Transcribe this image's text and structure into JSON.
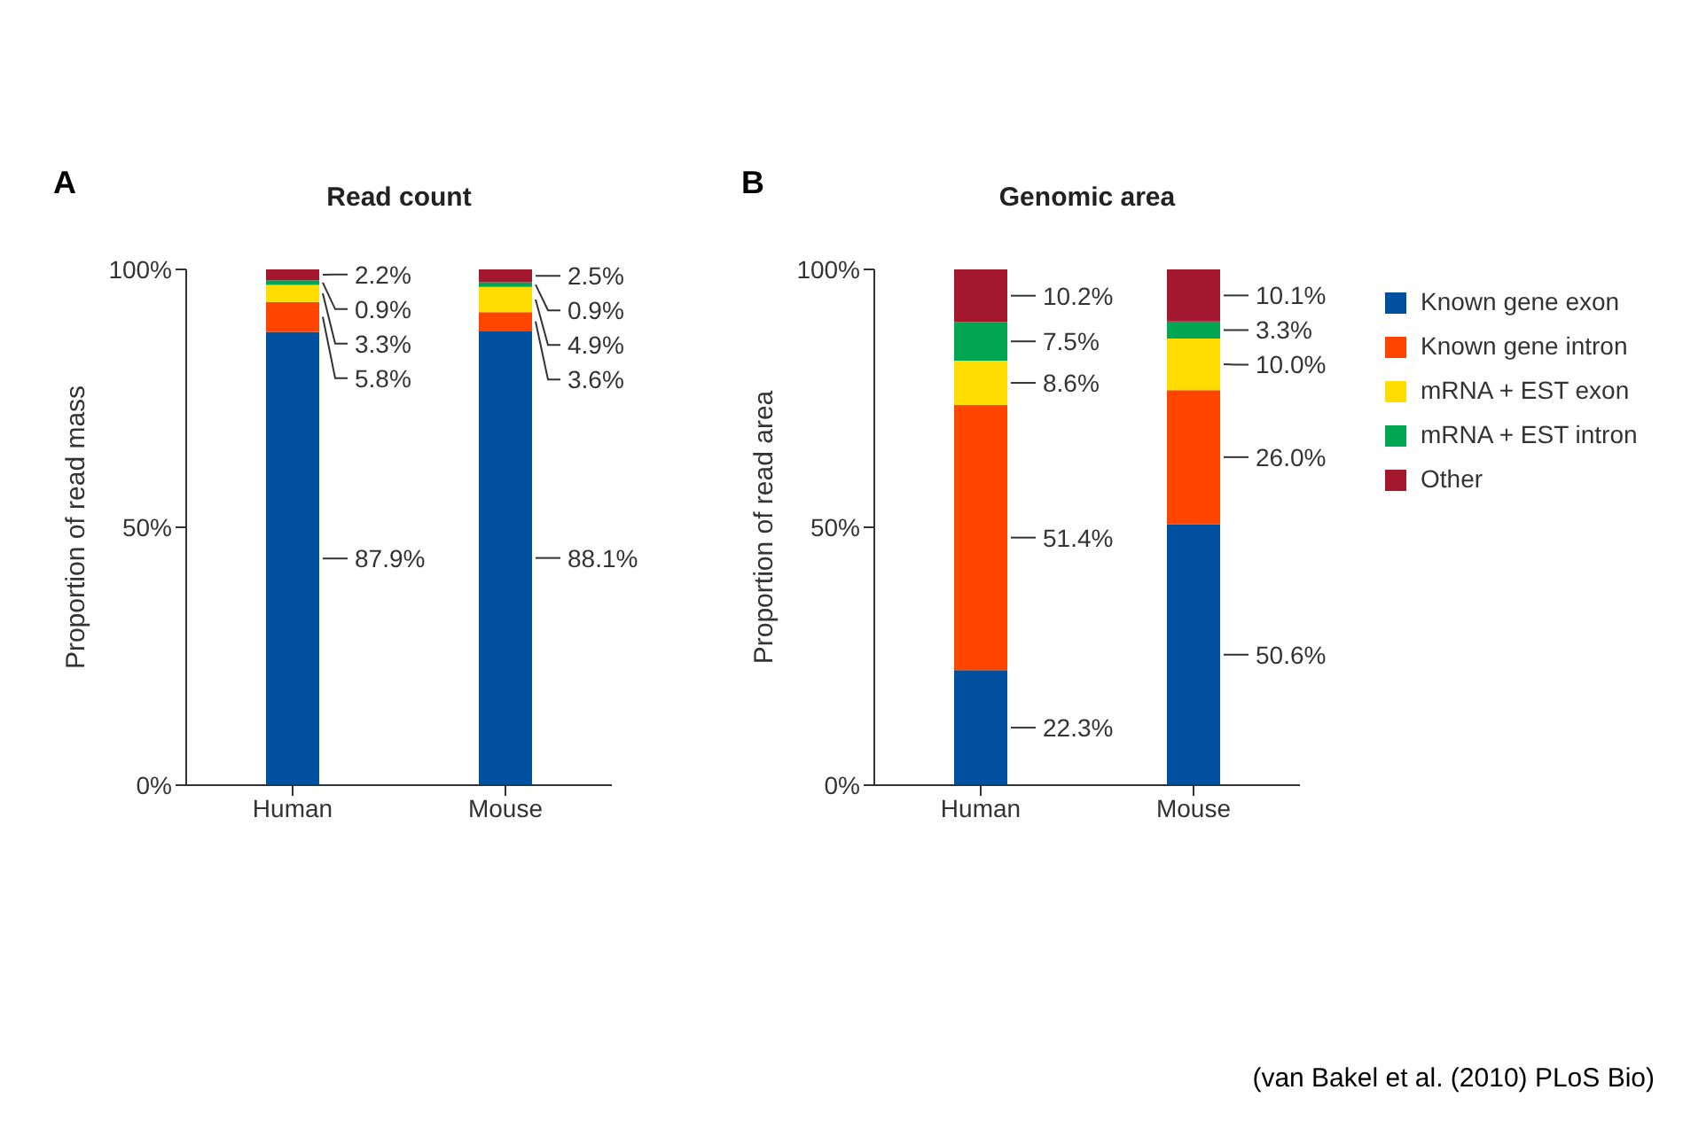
{
  "chart_data": [
    {
      "type": "bar",
      "stacked": true,
      "title": "Read count",
      "ylabel": "Proportion of read mass",
      "categories": [
        "Human",
        "Mouse"
      ],
      "ylim": [
        0,
        100
      ],
      "yticks": [
        {
          "value": 0,
          "label": "0%"
        },
        {
          "value": 50,
          "label": "50%"
        },
        {
          "value": 100,
          "label": "100%"
        }
      ],
      "grid": false,
      "legend": false,
      "annotations": [
        "A"
      ],
      "series": [
        {
          "color": "#0050a0",
          "values": [
            87.9,
            88.1
          ],
          "value_labels": [
            "87.9%",
            "88.1%"
          ]
        },
        {
          "color": "#ff4500",
          "values": [
            5.8,
            3.6
          ],
          "value_labels": [
            "5.8%",
            "3.6%"
          ]
        },
        {
          "color": "#ffdd00",
          "values": [
            3.3,
            4.9
          ],
          "value_labels": [
            "3.3%",
            "4.9%"
          ]
        },
        {
          "color": "#00a651",
          "values": [
            0.9,
            0.9
          ],
          "value_labels": [
            "0.9%",
            "0.9%"
          ]
        },
        {
          "color": "#a3172f",
          "values": [
            2.2,
            2.5
          ],
          "value_labels": [
            "2.2%",
            "2.5%"
          ]
        }
      ]
    },
    {
      "type": "bar",
      "stacked": true,
      "title": "Genomic area",
      "ylabel": "Proportion of read area",
      "categories": [
        "Human",
        "Mouse"
      ],
      "ylim": [
        0,
        100
      ],
      "yticks": [
        {
          "value": 0,
          "label": "0%"
        },
        {
          "value": 50,
          "label": "50%"
        },
        {
          "value": 100,
          "label": "100%"
        }
      ],
      "grid": false,
      "legend": "right",
      "annotations": [
        "B",
        "(van Bakel et al. (2010) PLoS Bio)"
      ],
      "series": [
        {
          "name": "Known gene exon",
          "color": "#0050a0",
          "values": [
            22.3,
            50.6
          ],
          "value_labels": [
            "22.3%",
            "50.6%"
          ]
        },
        {
          "name": "Known gene intron",
          "color": "#ff4500",
          "values": [
            51.4,
            26.0
          ],
          "value_labels": [
            "51.4%",
            "26.0%"
          ]
        },
        {
          "name": "mRNA + EST exon",
          "color": "#ffdd00",
          "values": [
            8.6,
            10.0
          ],
          "value_labels": [
            "8.6%",
            "10.0%"
          ]
        },
        {
          "name": "mRNA + EST intron",
          "color": "#00a651",
          "values": [
            7.5,
            3.3
          ],
          "value_labels": [
            "7.5%",
            "3.3%"
          ]
        },
        {
          "name": "Other",
          "color": "#a3172f",
          "values": [
            10.2,
            10.1
          ],
          "value_labels": [
            "10.2%",
            "10.1%"
          ]
        }
      ]
    }
  ]
}
